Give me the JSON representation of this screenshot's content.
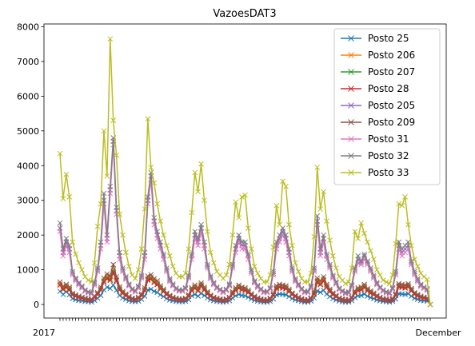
{
  "chart_data": {
    "type": "line",
    "title": "VazoesDAT3",
    "xlabel": "",
    "ylabel": "",
    "ylim": [
      -390,
      8080
    ],
    "yticks": [
      0,
      1000,
      2000,
      3000,
      4000,
      5000,
      6000,
      7000,
      8000
    ],
    "grid": false,
    "legend_position": "top-right",
    "marker": "x",
    "x_tick_first": "2017",
    "x_tick_last": "December",
    "series": [
      {
        "name": "Posto 25",
        "color": "#1f77b4",
        "values": [
          380,
          290,
          370,
          280,
          170,
          140,
          120,
          110,
          90,
          80,
          70,
          120,
          180,
          260,
          420,
          500,
          460,
          560,
          410,
          260,
          190,
          150,
          110,
          90,
          80,
          100,
          150,
          240,
          420,
          440,
          380,
          350,
          280,
          230,
          170,
          130,
          110,
          90,
          80,
          80,
          90,
          140,
          250,
          290,
          240,
          320,
          260,
          190,
          140,
          110,
          90,
          80,
          70,
          80,
          110,
          190,
          250,
          290,
          260,
          250,
          210,
          160,
          120,
          100,
          80,
          70,
          70,
          90,
          160,
          280,
          300,
          290,
          280,
          230,
          170,
          130,
          110,
          90,
          70,
          70,
          100,
          190,
          390,
          350,
          410,
          300,
          230,
          170,
          130,
          100,
          80,
          70,
          70,
          110,
          200,
          250,
          260,
          300,
          240,
          200,
          170,
          130,
          110,
          90,
          80,
          70,
          90,
          160,
          310,
          300,
          290,
          310,
          240,
          180,
          150,
          120,
          110,
          100,
          0
        ]
      },
      {
        "name": "Posto 206",
        "color": "#ff7f0e",
        "values": [
          600,
          480,
          540,
          470,
          300,
          260,
          230,
          200,
          170,
          150,
          140,
          220,
          320,
          460,
          700,
          820,
          760,
          1000,
          740,
          470,
          350,
          280,
          210,
          170,
          150,
          190,
          280,
          440,
          760,
          800,
          690,
          630,
          500,
          410,
          310,
          240,
          200,
          170,
          150,
          150,
          170,
          260,
          450,
          520,
          440,
          580,
          470,
          340,
          250,
          200,
          170,
          150,
          130,
          150,
          200,
          340,
          450,
          520,
          470,
          450,
          380,
          290,
          220,
          180,
          150,
          130,
          130,
          170,
          290,
          500,
          540,
          520,
          500,
          410,
          310,
          240,
          200,
          160,
          130,
          130,
          180,
          340,
          700,
          630,
          740,
          540,
          410,
          310,
          240,
          180,
          150,
          130,
          130,
          200,
          360,
          450,
          470,
          540,
          430,
          360,
          310,
          240,
          200,
          160,
          150,
          130,
          160,
          290,
          560,
          540,
          520,
          560,
          430,
          320,
          270,
          220,
          200,
          180,
          0
        ]
      },
      {
        "name": "Posto 207",
        "color": "#2ca02c",
        "values": [
          560,
          450,
          510,
          440,
          280,
          240,
          210,
          190,
          160,
          140,
          130,
          210,
          300,
          430,
          660,
          770,
          720,
          950,
          700,
          440,
          330,
          260,
          200,
          160,
          140,
          180,
          260,
          410,
          720,
          760,
          650,
          590,
          470,
          390,
          290,
          230,
          190,
          160,
          140,
          140,
          160,
          240,
          420,
          490,
          410,
          550,
          440,
          320,
          240,
          190,
          160,
          140,
          120,
          140,
          190,
          320,
          420,
          490,
          440,
          420,
          360,
          270,
          210,
          170,
          140,
          120,
          120,
          160,
          270,
          470,
          510,
          490,
          470,
          390,
          290,
          230,
          190,
          150,
          120,
          120,
          170,
          320,
          660,
          590,
          700,
          510,
          390,
          290,
          230,
          170,
          140,
          120,
          120,
          190,
          340,
          420,
          440,
          510,
          410,
          340,
          290,
          230,
          190,
          150,
          140,
          120,
          150,
          270,
          530,
          510,
          490,
          530,
          410,
          300,
          250,
          210,
          190,
          170,
          0
        ]
      },
      {
        "name": "Posto 28",
        "color": "#d62728",
        "values": [
          560,
          430,
          490,
          420,
          270,
          230,
          200,
          180,
          150,
          130,
          120,
          200,
          290,
          420,
          640,
          740,
          690,
          920,
          680,
          420,
          320,
          250,
          190,
          150,
          130,
          170,
          250,
          400,
          700,
          730,
          630,
          570,
          450,
          370,
          280,
          220,
          180,
          150,
          130,
          130,
          150,
          230,
          400,
          470,
          390,
          530,
          420,
          300,
          230,
          180,
          150,
          130,
          110,
          130,
          180,
          300,
          400,
          470,
          420,
          400,
          340,
          260,
          200,
          160,
          130,
          110,
          110,
          150,
          260,
          450,
          490,
          470,
          450,
          370,
          280,
          220,
          180,
          140,
          110,
          110,
          160,
          300,
          640,
          570,
          680,
          490,
          370,
          280,
          220,
          160,
          130,
          110,
          110,
          180,
          320,
          400,
          420,
          490,
          390,
          320,
          280,
          220,
          180,
          140,
          130,
          110,
          140,
          260,
          510,
          490,
          470,
          510,
          390,
          290,
          240,
          200,
          180,
          160,
          0
        ]
      },
      {
        "name": "Posto 205",
        "color": "#9467bd",
        "values": [
          2200,
          1500,
          1800,
          1600,
          900,
          720,
          600,
          500,
          400,
          350,
          320,
          600,
          1000,
          1700,
          3000,
          1900,
          3300,
          4700,
          2700,
          1400,
          1000,
          760,
          560,
          430,
          380,
          500,
          800,
          1400,
          3000,
          3700,
          2400,
          2000,
          1700,
          1400,
          1000,
          700,
          560,
          450,
          400,
          400,
          460,
          800,
          1400,
          2000,
          1800,
          2200,
          1700,
          1100,
          780,
          600,
          480,
          420,
          360,
          420,
          560,
          1100,
          1600,
          1900,
          1700,
          1700,
          1400,
          950,
          650,
          520,
          430,
          360,
          360,
          460,
          900,
          1700,
          1900,
          2100,
          1900,
          1500,
          1000,
          700,
          560,
          440,
          360,
          360,
          500,
          1000,
          2400,
          1500,
          1900,
          1400,
          1100,
          800,
          620,
          450,
          380,
          330,
          340,
          540,
          1000,
          1300,
          1200,
          1400,
          1200,
          1000,
          800,
          600,
          480,
          400,
          350,
          320,
          460,
          900,
          1700,
          1500,
          1600,
          1700,
          1200,
          900,
          700,
          550,
          480,
          430,
          0
        ]
      },
      {
        "name": "Posto 209",
        "color": "#8c564b",
        "values": [
          650,
          520,
          580,
          500,
          320,
          280,
          240,
          210,
          180,
          160,
          150,
          240,
          340,
          500,
          760,
          880,
          820,
          1150,
          800,
          510,
          380,
          300,
          230,
          180,
          160,
          210,
          300,
          480,
          820,
          860,
          740,
          680,
          540,
          440,
          330,
          260,
          210,
          180,
          160,
          160,
          180,
          280,
          480,
          560,
          480,
          620,
          500,
          370,
          270,
          210,
          180,
          160,
          140,
          160,
          210,
          370,
          480,
          560,
          500,
          480,
          410,
          310,
          240,
          190,
          160,
          140,
          140,
          180,
          310,
          540,
          580,
          560,
          540,
          440,
          330,
          260,
          210,
          170,
          140,
          140,
          190,
          370,
          760,
          680,
          800,
          580,
          440,
          330,
          260,
          190,
          160,
          140,
          140,
          210,
          390,
          480,
          500,
          580,
          460,
          390,
          330,
          260,
          210,
          170,
          160,
          140,
          170,
          310,
          600,
          580,
          560,
          600,
          460,
          340,
          290,
          240,
          210,
          190,
          0
        ]
      },
      {
        "name": "Posto 31",
        "color": "#e377c2",
        "values": [
          2100,
          1400,
          1700,
          1500,
          850,
          680,
          560,
          470,
          380,
          330,
          300,
          560,
          950,
          1600,
          2900,
          1800,
          3200,
          4600,
          2600,
          1300,
          950,
          720,
          530,
          410,
          360,
          470,
          760,
          1300,
          2900,
          3600,
          2300,
          1900,
          1600,
          1300,
          950,
          660,
          530,
          430,
          380,
          380,
          440,
          760,
          1300,
          1900,
          1700,
          2100,
          1600,
          1050,
          740,
          570,
          460,
          400,
          340,
          400,
          530,
          1050,
          1500,
          1800,
          1600,
          1600,
          1300,
          900,
          620,
          490,
          410,
          340,
          340,
          440,
          850,
          1600,
          1800,
          2000,
          1800,
          1400,
          950,
          660,
          530,
          420,
          340,
          340,
          470,
          950,
          2300,
          1400,
          1800,
          1300,
          1050,
          760,
          590,
          430,
          360,
          310,
          320,
          510,
          950,
          1200,
          1150,
          1300,
          1150,
          950,
          760,
          570,
          460,
          380,
          330,
          300,
          440,
          850,
          1600,
          1400,
          1500,
          1600,
          1150,
          850,
          660,
          520,
          460,
          410,
          0
        ]
      },
      {
        "name": "Posto 32",
        "color": "#7f7f7f",
        "values": [
          2350,
          1600,
          1900,
          1700,
          950,
          760,
          630,
          530,
          420,
          370,
          340,
          640,
          1050,
          1800,
          3200,
          2000,
          3400,
          4800,
          2800,
          1500,
          1050,
          800,
          590,
          450,
          400,
          530,
          840,
          1500,
          3100,
          3800,
          2500,
          2100,
          1800,
          1450,
          1050,
          740,
          590,
          470,
          420,
          420,
          480,
          840,
          1450,
          2100,
          1900,
          2300,
          1800,
          1150,
          820,
          630,
          500,
          440,
          380,
          440,
          590,
          1150,
          1700,
          2000,
          1800,
          1800,
          1450,
          1000,
          680,
          550,
          450,
          380,
          380,
          480,
          950,
          1800,
          2000,
          2200,
          2000,
          1600,
          1050,
          740,
          590,
          460,
          380,
          380,
          530,
          1050,
          2550,
          1600,
          2000,
          1450,
          1150,
          840,
          650,
          470,
          400,
          350,
          360,
          570,
          1050,
          1400,
          1250,
          1450,
          1250,
          1050,
          840,
          630,
          500,
          420,
          370,
          340,
          480,
          950,
          1800,
          1600,
          1700,
          1800,
          1250,
          950,
          740,
          580,
          500,
          450,
          0
        ]
      },
      {
        "name": "Posto 33",
        "color": "#bcbd22",
        "values": [
          4350,
          3050,
          3750,
          3100,
          1800,
          1450,
          1200,
          1000,
          800,
          700,
          650,
          1200,
          2250,
          2900,
          5000,
          3700,
          7650,
          5300,
          4300,
          2600,
          2000,
          1500,
          1100,
          850,
          750,
          1000,
          1600,
          2750,
          5350,
          3950,
          3500,
          2900,
          2400,
          2000,
          1700,
          1400,
          1100,
          900,
          800,
          800,
          900,
          1600,
          2650,
          3800,
          3250,
          4050,
          3000,
          2100,
          1500,
          1200,
          950,
          850,
          750,
          850,
          1150,
          2000,
          2950,
          2500,
          3100,
          3150,
          2200,
          1600,
          1100,
          900,
          750,
          650,
          650,
          850,
          1650,
          2850,
          2300,
          3550,
          3400,
          2300,
          1700,
          1200,
          950,
          750,
          650,
          650,
          900,
          1950,
          3950,
          2750,
          3250,
          2400,
          1850,
          1400,
          1050,
          800,
          700,
          600,
          650,
          1050,
          2100,
          1900,
          2350,
          2050,
          1800,
          1550,
          1300,
          1000,
          850,
          700,
          650,
          600,
          850,
          1750,
          2900,
          2850,
          3100,
          2300,
          1700,
          1300,
          1100,
          900,
          800,
          720,
          0
        ]
      }
    ]
  }
}
